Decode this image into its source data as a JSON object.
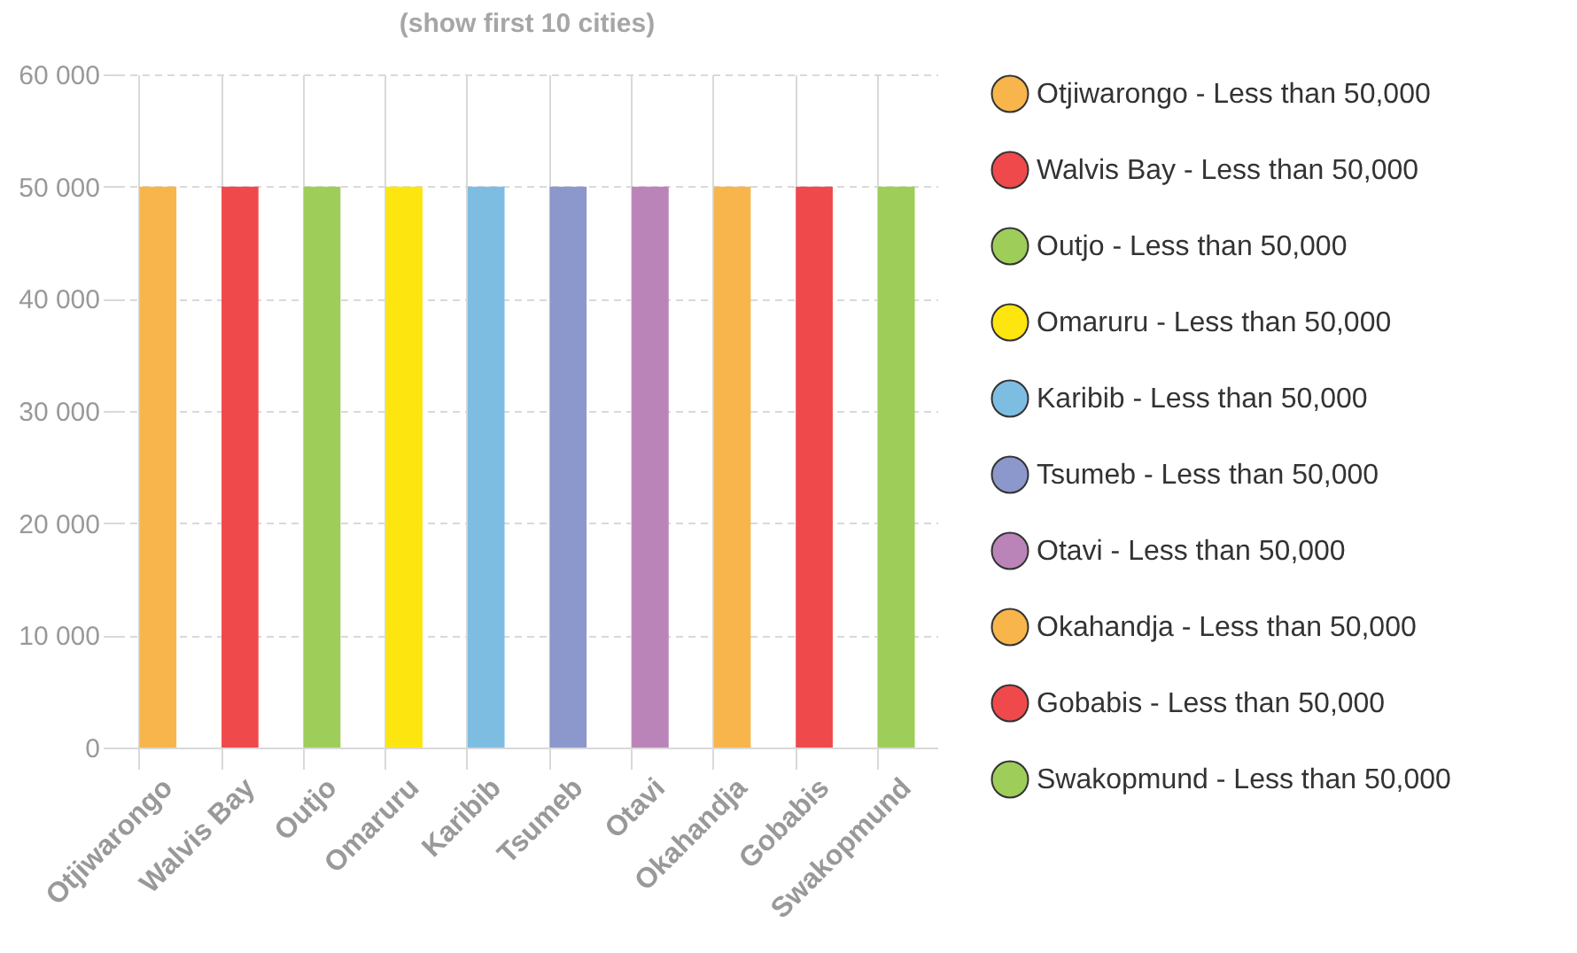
{
  "chart_data": {
    "type": "bar",
    "title": "(show first 10 cities)",
    "categories": [
      "Otjiwarongo",
      "Walvis Bay",
      "Outjo",
      "Omaruru",
      "Karibib",
      "Tsumeb",
      "Otavi",
      "Okahandja",
      "Gobabis",
      "Swakopmund"
    ],
    "series": [
      {
        "name": "Otjiwarongo - Less than 50,000",
        "color": "#f7b54b",
        "values": [
          50000,
          null,
          null,
          null,
          null,
          null,
          null,
          null,
          null,
          null
        ]
      },
      {
        "name": "Walvis Bay - Less than 50,000",
        "color": "#ef494c",
        "values": [
          null,
          50000,
          null,
          null,
          null,
          null,
          null,
          null,
          null,
          null
        ]
      },
      {
        "name": "Outjo - Less than 50,000",
        "color": "#9ecd5a",
        "values": [
          null,
          null,
          50000,
          null,
          null,
          null,
          null,
          null,
          null,
          null
        ]
      },
      {
        "name": "Omaruru - Less than 50,000",
        "color": "#fde50f",
        "values": [
          null,
          null,
          null,
          50000,
          null,
          null,
          null,
          null,
          null,
          null
        ]
      },
      {
        "name": "Karibib - Less than 50,000",
        "color": "#7ebde2",
        "values": [
          null,
          null,
          null,
          null,
          50000,
          null,
          null,
          null,
          null,
          null
        ]
      },
      {
        "name": "Tsumeb - Less than 50,000",
        "color": "#8c98cb",
        "values": [
          null,
          null,
          null,
          null,
          null,
          50000,
          null,
          null,
          null,
          null
        ]
      },
      {
        "name": "Otavi - Less than 50,000",
        "color": "#bb84b9",
        "values": [
          null,
          null,
          null,
          null,
          null,
          null,
          50000,
          null,
          null,
          null
        ]
      },
      {
        "name": "Okahandja - Less than 50,000",
        "color": "#f7b54b",
        "values": [
          null,
          null,
          null,
          null,
          null,
          null,
          null,
          50000,
          null,
          null
        ]
      },
      {
        "name": "Gobabis - Less than 50,000",
        "color": "#ef494c",
        "values": [
          null,
          null,
          null,
          null,
          null,
          null,
          null,
          null,
          50000,
          null
        ]
      },
      {
        "name": "Swakopmund - Less than 50,000",
        "color": "#9ecd5a",
        "values": [
          null,
          null,
          null,
          null,
          null,
          null,
          null,
          null,
          null,
          50000
        ]
      }
    ],
    "ylim": [
      0,
      60000
    ],
    "yticks": [
      {
        "value": 0,
        "label": "0"
      },
      {
        "value": 10000,
        "label": "10 000"
      },
      {
        "value": 20000,
        "label": "20 000"
      },
      {
        "value": 30000,
        "label": "30 000"
      },
      {
        "value": 40000,
        "label": "40 000"
      },
      {
        "value": 50000,
        "label": "50 000"
      },
      {
        "value": 60000,
        "label": "60 000"
      }
    ],
    "grid": true,
    "legend": "right"
  }
}
